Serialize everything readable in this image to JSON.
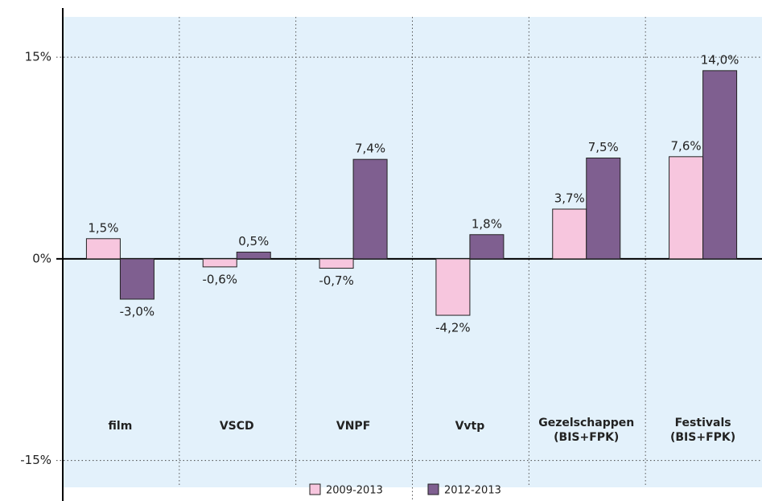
{
  "chart_data": {
    "type": "bar",
    "categories": [
      "film",
      "VSCD",
      "VNPF",
      "Vvtp",
      "Gezelschappen\n(BIS+FPK)",
      "Festivals\n(BIS+FPK)"
    ],
    "series": [
      {
        "name": "2009-2013",
        "color": "#f7c6de",
        "values": [
          1.5,
          -0.6,
          -0.7,
          -4.2,
          3.7,
          7.6
        ],
        "value_labels": [
          "1,5%",
          "-0,6%",
          "-0,7%",
          "-4,2%",
          "3,7%",
          "7,6%"
        ]
      },
      {
        "name": "2012-2013",
        "color": "#7f5f90",
        "values": [
          -3.0,
          0.5,
          7.4,
          1.8,
          7.5,
          14.0
        ],
        "value_labels": [
          "-3,0%",
          "0,5%",
          "7,4%",
          "1,8%",
          "7,5%",
          "14,0%"
        ]
      }
    ],
    "ylim": [
      -17,
      18
    ],
    "yticks": [
      {
        "value": -15,
        "label": "-15%"
      },
      {
        "value": 0,
        "label": "0%"
      },
      {
        "value": 15,
        "label": "15%"
      }
    ],
    "grid": true,
    "legend": "bottom"
  }
}
